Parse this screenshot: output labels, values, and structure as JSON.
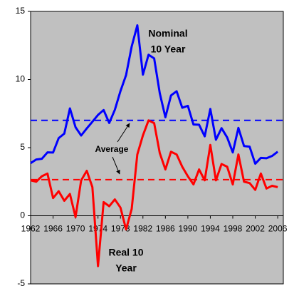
{
  "chart_data": {
    "type": "line",
    "x": [
      1962,
      1963,
      1964,
      1965,
      1966,
      1967,
      1968,
      1969,
      1970,
      1971,
      1972,
      1973,
      1974,
      1975,
      1976,
      1977,
      1978,
      1979,
      1980,
      1981,
      1982,
      1983,
      1984,
      1985,
      1986,
      1987,
      1988,
      1989,
      1990,
      1991,
      1992,
      1993,
      1994,
      1995,
      1996,
      1997,
      1998,
      1999,
      2000,
      2001,
      2002,
      2003,
      2004,
      2005,
      2006
    ],
    "series": [
      {
        "color": "#0000ff",
        "values": [
          3.86,
          4.13,
          4.18,
          4.65,
          4.64,
          5.7,
          6.03,
          7.88,
          6.5,
          5.89,
          6.41,
          6.9,
          7.4,
          7.76,
          6.81,
          7.78,
          9.15,
          10.33,
          12.43,
          13.98,
          10.36,
          11.82,
          11.55,
          9.0,
          7.23,
          8.83,
          9.14,
          7.93,
          8.07,
          6.7,
          6.68,
          5.83,
          7.84,
          5.58,
          6.43,
          5.75,
          4.65,
          6.45,
          5.12,
          5.07,
          3.82,
          4.25,
          4.22,
          4.39,
          4.7
        ]
      },
      {
        "color": "#ff0000",
        "values": [
          2.6,
          2.5,
          2.9,
          3.1,
          1.3,
          1.8,
          1.1,
          1.6,
          -0.1,
          2.6,
          3.3,
          2.1,
          -3.7,
          1.0,
          0.7,
          1.2,
          0.6,
          -1.0,
          0.5,
          4.5,
          5.9,
          7.0,
          6.8,
          4.6,
          3.4,
          4.7,
          4.5,
          3.6,
          2.9,
          2.3,
          3.4,
          2.6,
          5.2,
          2.6,
          3.8,
          3.6,
          2.3,
          4.5,
          2.5,
          2.4,
          1.9,
          3.1,
          2.0,
          2.2,
          2.1
        ]
      }
    ],
    "average_lines": [
      {
        "value": 7.0,
        "color": "#0000ff"
      },
      {
        "value": 2.65,
        "color": "#ff0000"
      }
    ],
    "annotations": [
      {
        "lines": [
          "Nominal",
          "10 Year"
        ]
      },
      {
        "lines": [
          "Real 10",
          "Year"
        ]
      },
      {
        "lines": [
          "Average"
        ]
      }
    ],
    "xlim": [
      1962,
      2007
    ],
    "xticks": [
      1962,
      1966,
      1970,
      1974,
      1978,
      1982,
      1986,
      1990,
      1994,
      1998,
      2002,
      2006
    ],
    "ylim": [
      -5,
      15
    ],
    "yticks": [
      -5,
      0,
      5,
      10,
      15
    ],
    "background": "#c0c0c0"
  }
}
